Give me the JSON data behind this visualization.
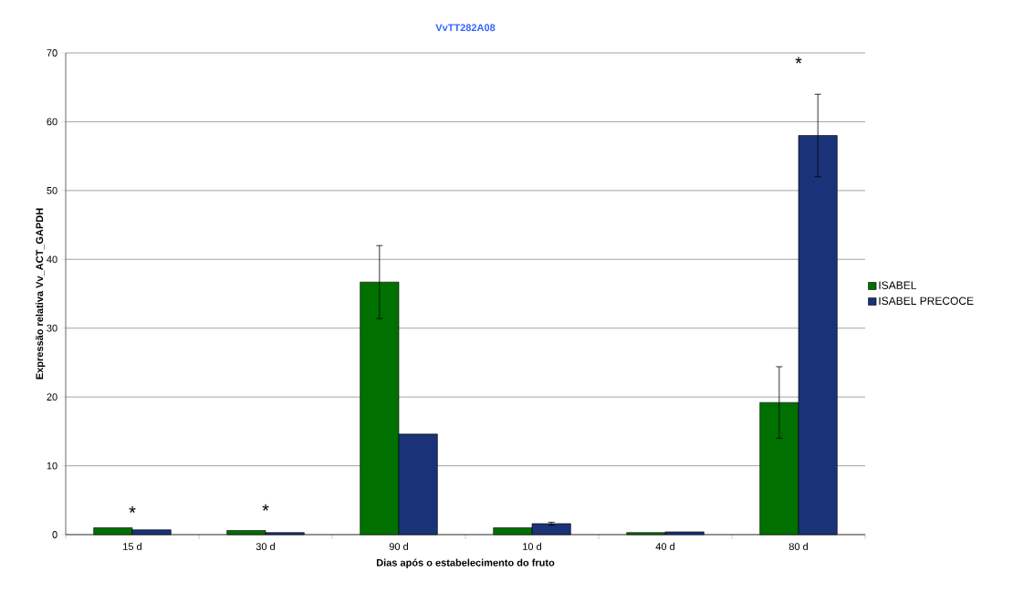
{
  "chart_data": {
    "type": "bar",
    "title": "VvTT282A08",
    "xlabel": "Dias após o estabelecimento do fruto",
    "ylabel": "Expressão relativa Vv_ACT_GAPDH",
    "categories": [
      "15 d",
      "30 d",
      "90 d",
      "10 d",
      "40 d",
      "80 d"
    ],
    "series": [
      {
        "name": "ISABEL",
        "color": "#007000",
        "values": [
          1.0,
          0.6,
          36.7,
          1.0,
          0.3,
          19.2
        ],
        "errors": [
          null,
          null,
          5.3,
          null,
          null,
          5.2
        ]
      },
      {
        "name": "ISABEL PRECOCE",
        "color": "#1a3278",
        "values": [
          0.7,
          0.3,
          14.6,
          1.6,
          0.4,
          58.0
        ],
        "errors": [
          null,
          null,
          null,
          0.2,
          null,
          6.0
        ]
      }
    ],
    "ylim": [
      0,
      70
    ],
    "yticks": [
      0,
      10,
      20,
      30,
      40,
      50,
      60,
      70
    ],
    "grid": "y",
    "legend": "right",
    "annotations": [
      {
        "text": "*",
        "x": "15 d",
        "y": 3.2
      },
      {
        "text": "*",
        "x": "30 d",
        "y": 3.5
      },
      {
        "text": "*",
        "x": "80 d",
        "y": 68.5
      }
    ]
  }
}
